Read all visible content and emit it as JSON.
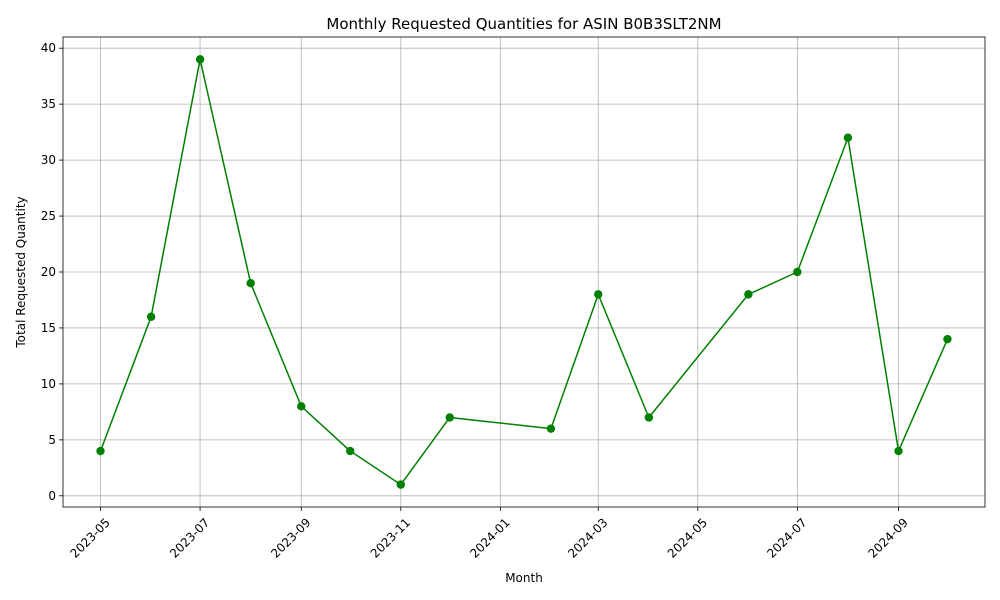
{
  "chart_data": {
    "type": "line",
    "title": "Monthly Requested Quantities for ASIN B0B3SLT2NM",
    "xlabel": "Month",
    "ylabel": "Total Requested Quantity",
    "x": [
      "2023-05-01",
      "2023-06-01",
      "2023-07-01",
      "2023-08-01",
      "2023-09-01",
      "2023-10-01",
      "2023-11-01",
      "2023-12-01",
      "2024-02-01",
      "2024-03-01",
      "2024-04-01",
      "2024-06-01",
      "2024-07-01",
      "2024-08-01",
      "2024-09-01",
      "2024-10-01"
    ],
    "series": [
      {
        "values": [
          4,
          16,
          39,
          19,
          8,
          4,
          1,
          7,
          6,
          18,
          7,
          18,
          20,
          32,
          4,
          14
        ],
        "color": "#008000",
        "marker": "circle"
      }
    ],
    "x_ticks": [
      "2023-05",
      "2023-07",
      "2023-09",
      "2023-11",
      "2024-01",
      "2024-03",
      "2024-05",
      "2024-07",
      "2024-09"
    ],
    "y_ticks": [
      0,
      5,
      10,
      15,
      20,
      25,
      30,
      35,
      40
    ],
    "xlim": [
      "2023-04-08",
      "2024-10-24"
    ],
    "ylim": [
      -1,
      41
    ],
    "grid": true,
    "legend": false,
    "x_tick_rotation": 45
  }
}
